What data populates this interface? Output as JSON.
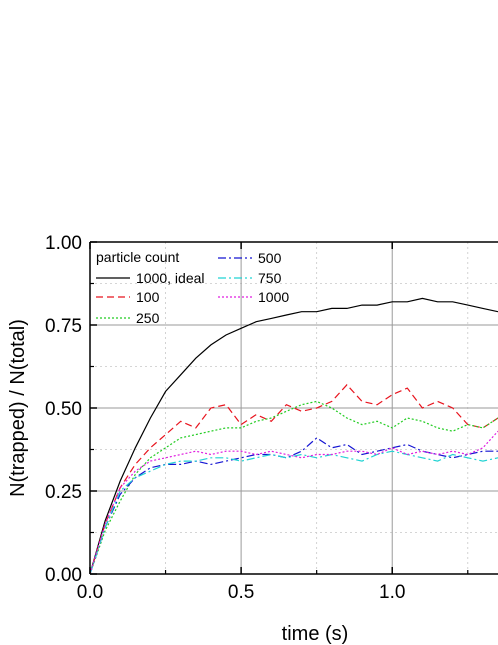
{
  "chart_data": {
    "type": "line",
    "xlabel": "time (s)",
    "ylabel": "N(trapped) / N(total)",
    "xlim": [
      0,
      1.35
    ],
    "ylim": [
      0,
      1.0
    ],
    "x_ticks": [
      "0.0",
      "0.5",
      "1.0"
    ],
    "y_ticks": [
      "0.00",
      "0.25",
      "0.50",
      "0.75",
      "1.00"
    ],
    "grid": "major solid, minor dotted",
    "legend": {
      "title": "particle count",
      "placement": "top-left"
    },
    "series": [
      {
        "name": "1000, ideal",
        "color": "#000000",
        "dash": "solid",
        "x": [
          0,
          0.05,
          0.1,
          0.15,
          0.2,
          0.25,
          0.3,
          0.35,
          0.4,
          0.45,
          0.5,
          0.55,
          0.6,
          0.65,
          0.7,
          0.75,
          0.8,
          0.85,
          0.9,
          0.95,
          1.0,
          1.05,
          1.1,
          1.15,
          1.2,
          1.25,
          1.3,
          1.35
        ],
        "y": [
          0,
          0.16,
          0.28,
          0.38,
          0.47,
          0.55,
          0.6,
          0.65,
          0.69,
          0.72,
          0.74,
          0.76,
          0.77,
          0.78,
          0.79,
          0.79,
          0.8,
          0.8,
          0.81,
          0.81,
          0.82,
          0.82,
          0.83,
          0.82,
          0.82,
          0.81,
          0.8,
          0.79
        ]
      },
      {
        "name": "100",
        "color": "#e8141e",
        "dash": "dashed",
        "x": [
          0,
          0.05,
          0.1,
          0.15,
          0.2,
          0.25,
          0.3,
          0.35,
          0.4,
          0.45,
          0.5,
          0.55,
          0.6,
          0.65,
          0.7,
          0.75,
          0.8,
          0.85,
          0.9,
          0.95,
          1.0,
          1.05,
          1.1,
          1.15,
          1.2,
          1.25,
          1.3,
          1.35
        ],
        "y": [
          0,
          0.15,
          0.26,
          0.33,
          0.38,
          0.42,
          0.46,
          0.44,
          0.5,
          0.51,
          0.45,
          0.48,
          0.46,
          0.51,
          0.49,
          0.5,
          0.52,
          0.57,
          0.52,
          0.51,
          0.54,
          0.56,
          0.5,
          0.52,
          0.5,
          0.45,
          0.44,
          0.47
        ]
      },
      {
        "name": "250",
        "color": "#22cc22",
        "dash": "dotted",
        "x": [
          0,
          0.05,
          0.1,
          0.15,
          0.2,
          0.25,
          0.3,
          0.35,
          0.4,
          0.45,
          0.5,
          0.55,
          0.6,
          0.65,
          0.7,
          0.75,
          0.8,
          0.85,
          0.9,
          0.95,
          1.0,
          1.05,
          1.1,
          1.15,
          1.2,
          1.25,
          1.3,
          1.35
        ],
        "y": [
          0,
          0.13,
          0.22,
          0.3,
          0.35,
          0.38,
          0.41,
          0.42,
          0.43,
          0.44,
          0.44,
          0.46,
          0.47,
          0.49,
          0.51,
          0.52,
          0.5,
          0.47,
          0.45,
          0.46,
          0.44,
          0.47,
          0.46,
          0.44,
          0.43,
          0.45,
          0.44,
          0.47
        ]
      },
      {
        "name": "500",
        "color": "#1414d2",
        "dash": "dashdot",
        "x": [
          0,
          0.05,
          0.1,
          0.15,
          0.2,
          0.25,
          0.3,
          0.35,
          0.4,
          0.45,
          0.5,
          0.55,
          0.6,
          0.65,
          0.7,
          0.75,
          0.8,
          0.85,
          0.9,
          0.95,
          1.0,
          1.05,
          1.1,
          1.15,
          1.2,
          1.25,
          1.3,
          1.35
        ],
        "y": [
          0,
          0.14,
          0.24,
          0.29,
          0.32,
          0.33,
          0.33,
          0.34,
          0.33,
          0.34,
          0.35,
          0.36,
          0.36,
          0.35,
          0.37,
          0.41,
          0.38,
          0.39,
          0.36,
          0.37,
          0.38,
          0.39,
          0.37,
          0.36,
          0.35,
          0.36,
          0.37,
          0.37
        ]
      },
      {
        "name": "750",
        "color": "#22d3d3",
        "dash": "dashdot",
        "x": [
          0,
          0.05,
          0.1,
          0.15,
          0.2,
          0.25,
          0.3,
          0.35,
          0.4,
          0.45,
          0.5,
          0.55,
          0.6,
          0.65,
          0.7,
          0.75,
          0.8,
          0.85,
          0.9,
          0.95,
          1.0,
          1.05,
          1.1,
          1.15,
          1.2,
          1.25,
          1.3,
          1.35
        ],
        "y": [
          0,
          0.14,
          0.25,
          0.29,
          0.31,
          0.33,
          0.34,
          0.34,
          0.35,
          0.35,
          0.34,
          0.35,
          0.36,
          0.35,
          0.36,
          0.35,
          0.36,
          0.35,
          0.34,
          0.36,
          0.37,
          0.36,
          0.35,
          0.34,
          0.36,
          0.35,
          0.34,
          0.35
        ]
      },
      {
        "name": "1000",
        "color": "#e01ee0",
        "dash": "dotted",
        "x": [
          0,
          0.05,
          0.1,
          0.15,
          0.2,
          0.25,
          0.3,
          0.35,
          0.4,
          0.45,
          0.5,
          0.55,
          0.6,
          0.65,
          0.7,
          0.75,
          0.8,
          0.85,
          0.9,
          0.95,
          1.0,
          1.05,
          1.1,
          1.15,
          1.2,
          1.25,
          1.3,
          1.35
        ],
        "y": [
          0,
          0.15,
          0.26,
          0.31,
          0.34,
          0.35,
          0.36,
          0.37,
          0.36,
          0.37,
          0.37,
          0.36,
          0.37,
          0.36,
          0.35,
          0.36,
          0.36,
          0.37,
          0.37,
          0.36,
          0.38,
          0.36,
          0.37,
          0.36,
          0.37,
          0.36,
          0.38,
          0.43
        ]
      }
    ]
  }
}
